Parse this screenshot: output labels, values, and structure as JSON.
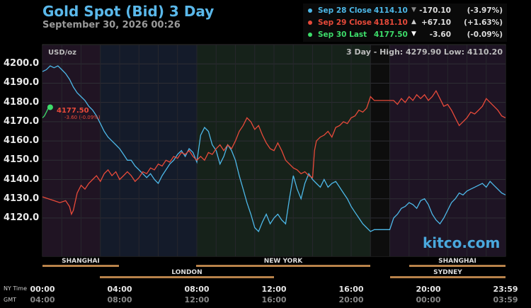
{
  "header": {
    "title": "Gold Spot (Bid) 3 Day",
    "timestamp": "September 30, 2026 00:26"
  },
  "legend": [
    {
      "name": "Sep 28 Close",
      "close": "4114.10",
      "arrow": "▼",
      "change": "-170.10",
      "pct": "(-3.97%)",
      "color": "#4db8e8",
      "arrow_color": "#888888"
    },
    {
      "name": "Sep 29 Close",
      "close": "4181.10",
      "arrow": "▲",
      "change": "+67.10",
      "pct": "(+1.63%)",
      "color": "#e84a3a",
      "arrow_color": "#cccccc"
    },
    {
      "name": "Sep 30 Last",
      "close": "4177.50",
      "arrow": "▼",
      "change": "-3.60",
      "pct": "(-0.09%)",
      "color": "#3ddc6a",
      "arrow_color": "#ffffff"
    }
  ],
  "unit_label": "USD/oz",
  "hilo_text": "3 Day - High: 4279.90  Low: 4110.20",
  "last_label": "4177.50",
  "last_sub": "-3.60 (-0.09%)",
  "watermark": "kitco.com",
  "y_ticks": [
    "4200.0",
    "4190.0",
    "4180.0",
    "4170.0",
    "4160.0",
    "4150.0",
    "4140.0",
    "4130.0",
    "4120.0"
  ],
  "x_ticks_ny": [
    "00:00",
    "04:00",
    "08:00",
    "12:00",
    "16:00",
    "20:00",
    "23:59"
  ],
  "x_ticks_gmt": [
    "04:00",
    "08:00",
    "12:00",
    "16:00",
    "20:00",
    "00:00",
    "03:59"
  ],
  "tz_labels": {
    "ny": "NY Time",
    "gmt": "GMT"
  },
  "sessions_row1": [
    "SHANGHAI",
    "NEW YORK",
    "SHANGHAI"
  ],
  "sessions_row2": [
    "LONDON",
    "SYDNEY"
  ],
  "chart_data": {
    "type": "line",
    "x_unit": "hour of day (NY time)",
    "xlim": [
      0,
      24
    ],
    "ylim": [
      4110,
      4205
    ],
    "grid": true,
    "series": [
      {
        "name": "Sep 28 Close",
        "color": "#4db8e8",
        "points": [
          [
            0,
            4196
          ],
          [
            0.2,
            4197
          ],
          [
            0.4,
            4199
          ],
          [
            0.6,
            4198
          ],
          [
            0.8,
            4199
          ],
          [
            1.0,
            4197
          ],
          [
            1.2,
            4195
          ],
          [
            1.4,
            4192
          ],
          [
            1.6,
            4188
          ],
          [
            1.8,
            4185
          ],
          [
            2.0,
            4183
          ],
          [
            2.2,
            4181
          ],
          [
            2.4,
            4178
          ],
          [
            2.6,
            4176
          ],
          [
            2.8,
            4173
          ],
          [
            3.0,
            4169
          ],
          [
            3.2,
            4165
          ],
          [
            3.4,
            4162
          ],
          [
            3.6,
            4160
          ],
          [
            3.8,
            4158
          ],
          [
            4.0,
            4156
          ],
          [
            4.2,
            4153
          ],
          [
            4.4,
            4150
          ],
          [
            4.6,
            4150
          ],
          [
            4.8,
            4147
          ],
          [
            5.0,
            4145
          ],
          [
            5.2,
            4143
          ],
          [
            5.4,
            4141
          ],
          [
            5.6,
            4143
          ],
          [
            5.8,
            4140
          ],
          [
            6.0,
            4138
          ],
          [
            6.2,
            4142
          ],
          [
            6.4,
            4145
          ],
          [
            6.6,
            4148
          ],
          [
            6.8,
            4150
          ],
          [
            7.0,
            4153
          ],
          [
            7.2,
            4155
          ],
          [
            7.4,
            4152
          ],
          [
            7.6,
            4156
          ],
          [
            7.8,
            4154
          ],
          [
            8.0,
            4149
          ],
          [
            8.2,
            4163
          ],
          [
            8.4,
            4167
          ],
          [
            8.6,
            4165
          ],
          [
            8.8,
            4158
          ],
          [
            9.0,
            4155
          ],
          [
            9.2,
            4148
          ],
          [
            9.4,
            4152
          ],
          [
            9.6,
            4158
          ],
          [
            9.8,
            4155
          ],
          [
            10.0,
            4150
          ],
          [
            10.2,
            4142
          ],
          [
            10.4,
            4135
          ],
          [
            10.6,
            4128
          ],
          [
            10.8,
            4122
          ],
          [
            11.0,
            4115
          ],
          [
            11.2,
            4113
          ],
          [
            11.4,
            4118
          ],
          [
            11.6,
            4122
          ],
          [
            11.8,
            4117
          ],
          [
            12.0,
            4120
          ],
          [
            12.2,
            4122
          ],
          [
            12.4,
            4119
          ],
          [
            12.6,
            4117
          ],
          [
            12.8,
            4130
          ],
          [
            13.0,
            4142
          ],
          [
            13.2,
            4135
          ],
          [
            13.4,
            4130
          ],
          [
            13.6,
            4138
          ],
          [
            13.8,
            4143
          ],
          [
            14.0,
            4140
          ],
          [
            14.2,
            4138
          ],
          [
            14.4,
            4136
          ],
          [
            14.6,
            4140
          ],
          [
            14.8,
            4136
          ],
          [
            15.0,
            4138
          ],
          [
            15.2,
            4139
          ],
          [
            15.4,
            4136
          ],
          [
            15.6,
            4133
          ],
          [
            15.8,
            4130
          ],
          [
            16.0,
            4126
          ],
          [
            16.2,
            4123
          ],
          [
            16.4,
            4120
          ],
          [
            16.6,
            4117
          ],
          [
            16.8,
            4115
          ],
          [
            17.0,
            4113
          ],
          [
            17.2,
            4114
          ],
          [
            17.6,
            4114
          ],
          [
            18.0,
            4114
          ],
          [
            18.2,
            4120
          ],
          [
            18.4,
            4122
          ],
          [
            18.6,
            4125
          ],
          [
            18.8,
            4126
          ],
          [
            19.0,
            4128
          ],
          [
            19.2,
            4127
          ],
          [
            19.4,
            4125
          ],
          [
            19.6,
            4129
          ],
          [
            19.8,
            4130
          ],
          [
            20.0,
            4127
          ],
          [
            20.2,
            4122
          ],
          [
            20.4,
            4119
          ],
          [
            20.6,
            4117
          ],
          [
            20.8,
            4120
          ],
          [
            21.0,
            4124
          ],
          [
            21.2,
            4128
          ],
          [
            21.4,
            4130
          ],
          [
            21.6,
            4133
          ],
          [
            21.8,
            4132
          ],
          [
            22.0,
            4134
          ],
          [
            22.2,
            4135
          ],
          [
            22.4,
            4136
          ],
          [
            22.6,
            4137
          ],
          [
            22.8,
            4138
          ],
          [
            23.0,
            4136
          ],
          [
            23.2,
            4139
          ],
          [
            23.4,
            4137
          ],
          [
            23.6,
            4135
          ],
          [
            23.8,
            4133
          ],
          [
            24.0,
            4132
          ]
        ]
      },
      {
        "name": "Sep 29 Close",
        "color": "#e84a3a",
        "points": [
          [
            0,
            4131
          ],
          [
            0.3,
            4130
          ],
          [
            0.6,
            4129
          ],
          [
            0.9,
            4128
          ],
          [
            1.2,
            4129
          ],
          [
            1.4,
            4126
          ],
          [
            1.5,
            4122
          ],
          [
            1.6,
            4124
          ],
          [
            1.8,
            4133
          ],
          [
            2.0,
            4137
          ],
          [
            2.2,
            4135
          ],
          [
            2.4,
            4138
          ],
          [
            2.6,
            4140
          ],
          [
            2.8,
            4142
          ],
          [
            3.0,
            4139
          ],
          [
            3.2,
            4143
          ],
          [
            3.4,
            4145
          ],
          [
            3.6,
            4142
          ],
          [
            3.8,
            4144
          ],
          [
            4.0,
            4140
          ],
          [
            4.2,
            4142
          ],
          [
            4.4,
            4144
          ],
          [
            4.6,
            4142
          ],
          [
            4.8,
            4139
          ],
          [
            5.0,
            4141
          ],
          [
            5.2,
            4144
          ],
          [
            5.4,
            4143
          ],
          [
            5.6,
            4146
          ],
          [
            5.8,
            4145
          ],
          [
            6.0,
            4148
          ],
          [
            6.2,
            4147
          ],
          [
            6.4,
            4150
          ],
          [
            6.6,
            4149
          ],
          [
            6.8,
            4152
          ],
          [
            7.0,
            4151
          ],
          [
            7.2,
            4154
          ],
          [
            7.4,
            4153
          ],
          [
            7.6,
            4155
          ],
          [
            7.8,
            4152
          ],
          [
            8.0,
            4150
          ],
          [
            8.2,
            4152
          ],
          [
            8.4,
            4150
          ],
          [
            8.6,
            4154
          ],
          [
            8.8,
            4153
          ],
          [
            9.0,
            4156
          ],
          [
            9.2,
            4158
          ],
          [
            9.4,
            4155
          ],
          [
            9.6,
            4158
          ],
          [
            9.8,
            4156
          ],
          [
            10.0,
            4160
          ],
          [
            10.2,
            4165
          ],
          [
            10.4,
            4168
          ],
          [
            10.6,
            4172
          ],
          [
            10.8,
            4170
          ],
          [
            11.0,
            4166
          ],
          [
            11.2,
            4168
          ],
          [
            11.4,
            4163
          ],
          [
            11.6,
            4159
          ],
          [
            11.8,
            4156
          ],
          [
            12.0,
            4155
          ],
          [
            12.2,
            4159
          ],
          [
            12.4,
            4155
          ],
          [
            12.6,
            4150
          ],
          [
            12.8,
            4148
          ],
          [
            13.0,
            4146
          ],
          [
            13.2,
            4145
          ],
          [
            13.4,
            4143
          ],
          [
            13.6,
            4144
          ],
          [
            13.8,
            4142
          ],
          [
            14.0,
            4141
          ],
          [
            14.1,
            4155
          ],
          [
            14.2,
            4160
          ],
          [
            14.4,
            4162
          ],
          [
            14.6,
            4163
          ],
          [
            14.8,
            4165
          ],
          [
            15.0,
            4162
          ],
          [
            15.2,
            4167
          ],
          [
            15.4,
            4168
          ],
          [
            15.6,
            4170
          ],
          [
            15.8,
            4169
          ],
          [
            16.0,
            4172
          ],
          [
            16.2,
            4173
          ],
          [
            16.4,
            4176
          ],
          [
            16.6,
            4175
          ],
          [
            16.8,
            4177
          ],
          [
            17.0,
            4183
          ],
          [
            17.2,
            4181
          ],
          [
            17.6,
            4181
          ],
          [
            18.0,
            4181
          ],
          [
            18.2,
            4181
          ],
          [
            18.4,
            4179
          ],
          [
            18.6,
            4182
          ],
          [
            18.8,
            4180
          ],
          [
            19.0,
            4183
          ],
          [
            19.2,
            4181
          ],
          [
            19.4,
            4184
          ],
          [
            19.6,
            4182
          ],
          [
            19.8,
            4184
          ],
          [
            20.0,
            4181
          ],
          [
            20.2,
            4183
          ],
          [
            20.4,
            4186
          ],
          [
            20.6,
            4182
          ],
          [
            20.8,
            4178
          ],
          [
            21.0,
            4179
          ],
          [
            21.2,
            4176
          ],
          [
            21.4,
            4172
          ],
          [
            21.6,
            4168
          ],
          [
            21.8,
            4170
          ],
          [
            22.0,
            4172
          ],
          [
            22.2,
            4175
          ],
          [
            22.4,
            4174
          ],
          [
            22.6,
            4176
          ],
          [
            22.8,
            4178
          ],
          [
            23.0,
            4182
          ],
          [
            23.2,
            4180
          ],
          [
            23.4,
            4178
          ],
          [
            23.6,
            4176
          ],
          [
            23.8,
            4173
          ],
          [
            24.0,
            4172
          ]
        ]
      },
      {
        "name": "Sep 30 Last",
        "color": "#3ddc6a",
        "points": [
          [
            0,
            4172
          ],
          [
            0.1,
            4173
          ],
          [
            0.2,
            4175
          ],
          [
            0.3,
            4177
          ],
          [
            0.4,
            4177.5
          ]
        ]
      }
    ]
  }
}
